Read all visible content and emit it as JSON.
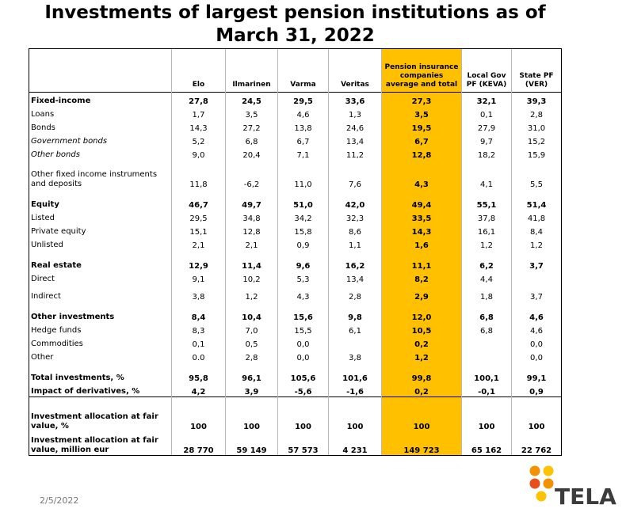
{
  "title_line1": "Investments of largest pension institutions as of",
  "title_line2": "March 31, 2022",
  "columns": [
    "Elo",
    "Ilmarinen",
    "Varma",
    "Veritas",
    "Pension insurance companies average and total",
    "Local Gov PF (KEVA)",
    "State PF (VER)"
  ],
  "rows": [
    {
      "label": "Fixed-income",
      "values": [
        "27,8",
        "24,5",
        "29,5",
        "33,6",
        "27,3",
        "32,1",
        "39,3"
      ]
    },
    {
      "label": "Loans",
      "values": [
        "1,7",
        "3,5",
        "4,6",
        "1,3",
        "3,5",
        "0,1",
        "2,8"
      ]
    },
    {
      "label": "Bonds",
      "values": [
        "14,3",
        "27,2",
        "13,8",
        "24,6",
        "19,5",
        "27,9",
        "31,0"
      ]
    },
    {
      "label": "Government bonds",
      "values": [
        "5,2",
        "6,8",
        "6,7",
        "13,4",
        "6,7",
        "9,7",
        "15,2"
      ]
    },
    {
      "label": "Other bonds",
      "values": [
        "9,0",
        "20,4",
        "7,1",
        "11,2",
        "12,8",
        "18,2",
        "15,9"
      ]
    },
    {
      "label": "Other fixed income instruments and deposits",
      "values": [
        "11,8",
        "-6,2",
        "11,0",
        "7,6",
        "4,3",
        "4,1",
        "5,5"
      ]
    },
    {
      "label": "Equity",
      "values": [
        "46,7",
        "49,7",
        "51,0",
        "42,0",
        "49,4",
        "55,1",
        "51,4"
      ]
    },
    {
      "label": "Listed",
      "values": [
        "29,5",
        "34,8",
        "34,2",
        "32,3",
        "33,5",
        "37,8",
        "41,8"
      ]
    },
    {
      "label": "Private equity",
      "values": [
        "15,1",
        "12,8",
        "15,8",
        "8,6",
        "14,3",
        "16,1",
        "8,4"
      ]
    },
    {
      "label": "Unlisted",
      "values": [
        "2,1",
        "2,1",
        "0,9",
        "1,1",
        "1,6",
        "1,2",
        "1,2"
      ]
    },
    {
      "label": "Real estate",
      "values": [
        "12,9",
        "11,4",
        "9,6",
        "16,2",
        "11,1",
        "6,2",
        "3,7"
      ]
    },
    {
      "label": "Direct",
      "values": [
        "9,1",
        "10,2",
        "5,3",
        "13,4",
        "8,2",
        "4,4",
        ""
      ]
    },
    {
      "label": "Indirect",
      "values": [
        "3,8",
        "1,2",
        "4,3",
        "2,8",
        "2,9",
        "1,8",
        "3,7"
      ]
    },
    {
      "label": "Other investments",
      "values": [
        "8,4",
        "10,4",
        "15,6",
        "9,8",
        "12,0",
        "6,8",
        "4,6"
      ]
    },
    {
      "label": "Hedge funds",
      "values": [
        "8,3",
        "7,0",
        "15,5",
        "6,1",
        "10,5",
        "6,8",
        "4,6"
      ]
    },
    {
      "label": "Commodities",
      "values": [
        "0,1",
        "0,5",
        "0,0",
        "",
        "0,2",
        "",
        "0,0"
      ]
    },
    {
      "label": "Other",
      "values": [
        "0.0",
        "2,8",
        "0,0",
        "3,8",
        "1,2",
        "",
        "0,0"
      ]
    },
    {
      "label": "Total investments, %",
      "values": [
        "95,8",
        "96,1",
        "105,6",
        "101,6",
        "99,8",
        "100,1",
        "99,1"
      ]
    },
    {
      "label": "Impact of derivatives, %",
      "values": [
        "4,2",
        "3,9",
        "-5,6",
        "-1,6",
        "0,2",
        "-0,1",
        "0,9"
      ]
    },
    {
      "label": "Investment allocation at fair value, %",
      "values": [
        "100",
        "100",
        "100",
        "100",
        "100",
        "100",
        "100"
      ]
    },
    {
      "label": "Investment allocation at fair value, million eur",
      "values": [
        "28 770",
        "59 149",
        "57 573",
        "4 231",
        "149 723",
        "65 162",
        "22 762"
      ]
    }
  ],
  "footer_date": "2/5/2022",
  "logo_text": "TELA",
  "colors": {
    "highlight": "#ffc000",
    "logo_orange": "#f39200",
    "logo_yellow": "#fdc300",
    "logo_red": "#e94e1b"
  }
}
